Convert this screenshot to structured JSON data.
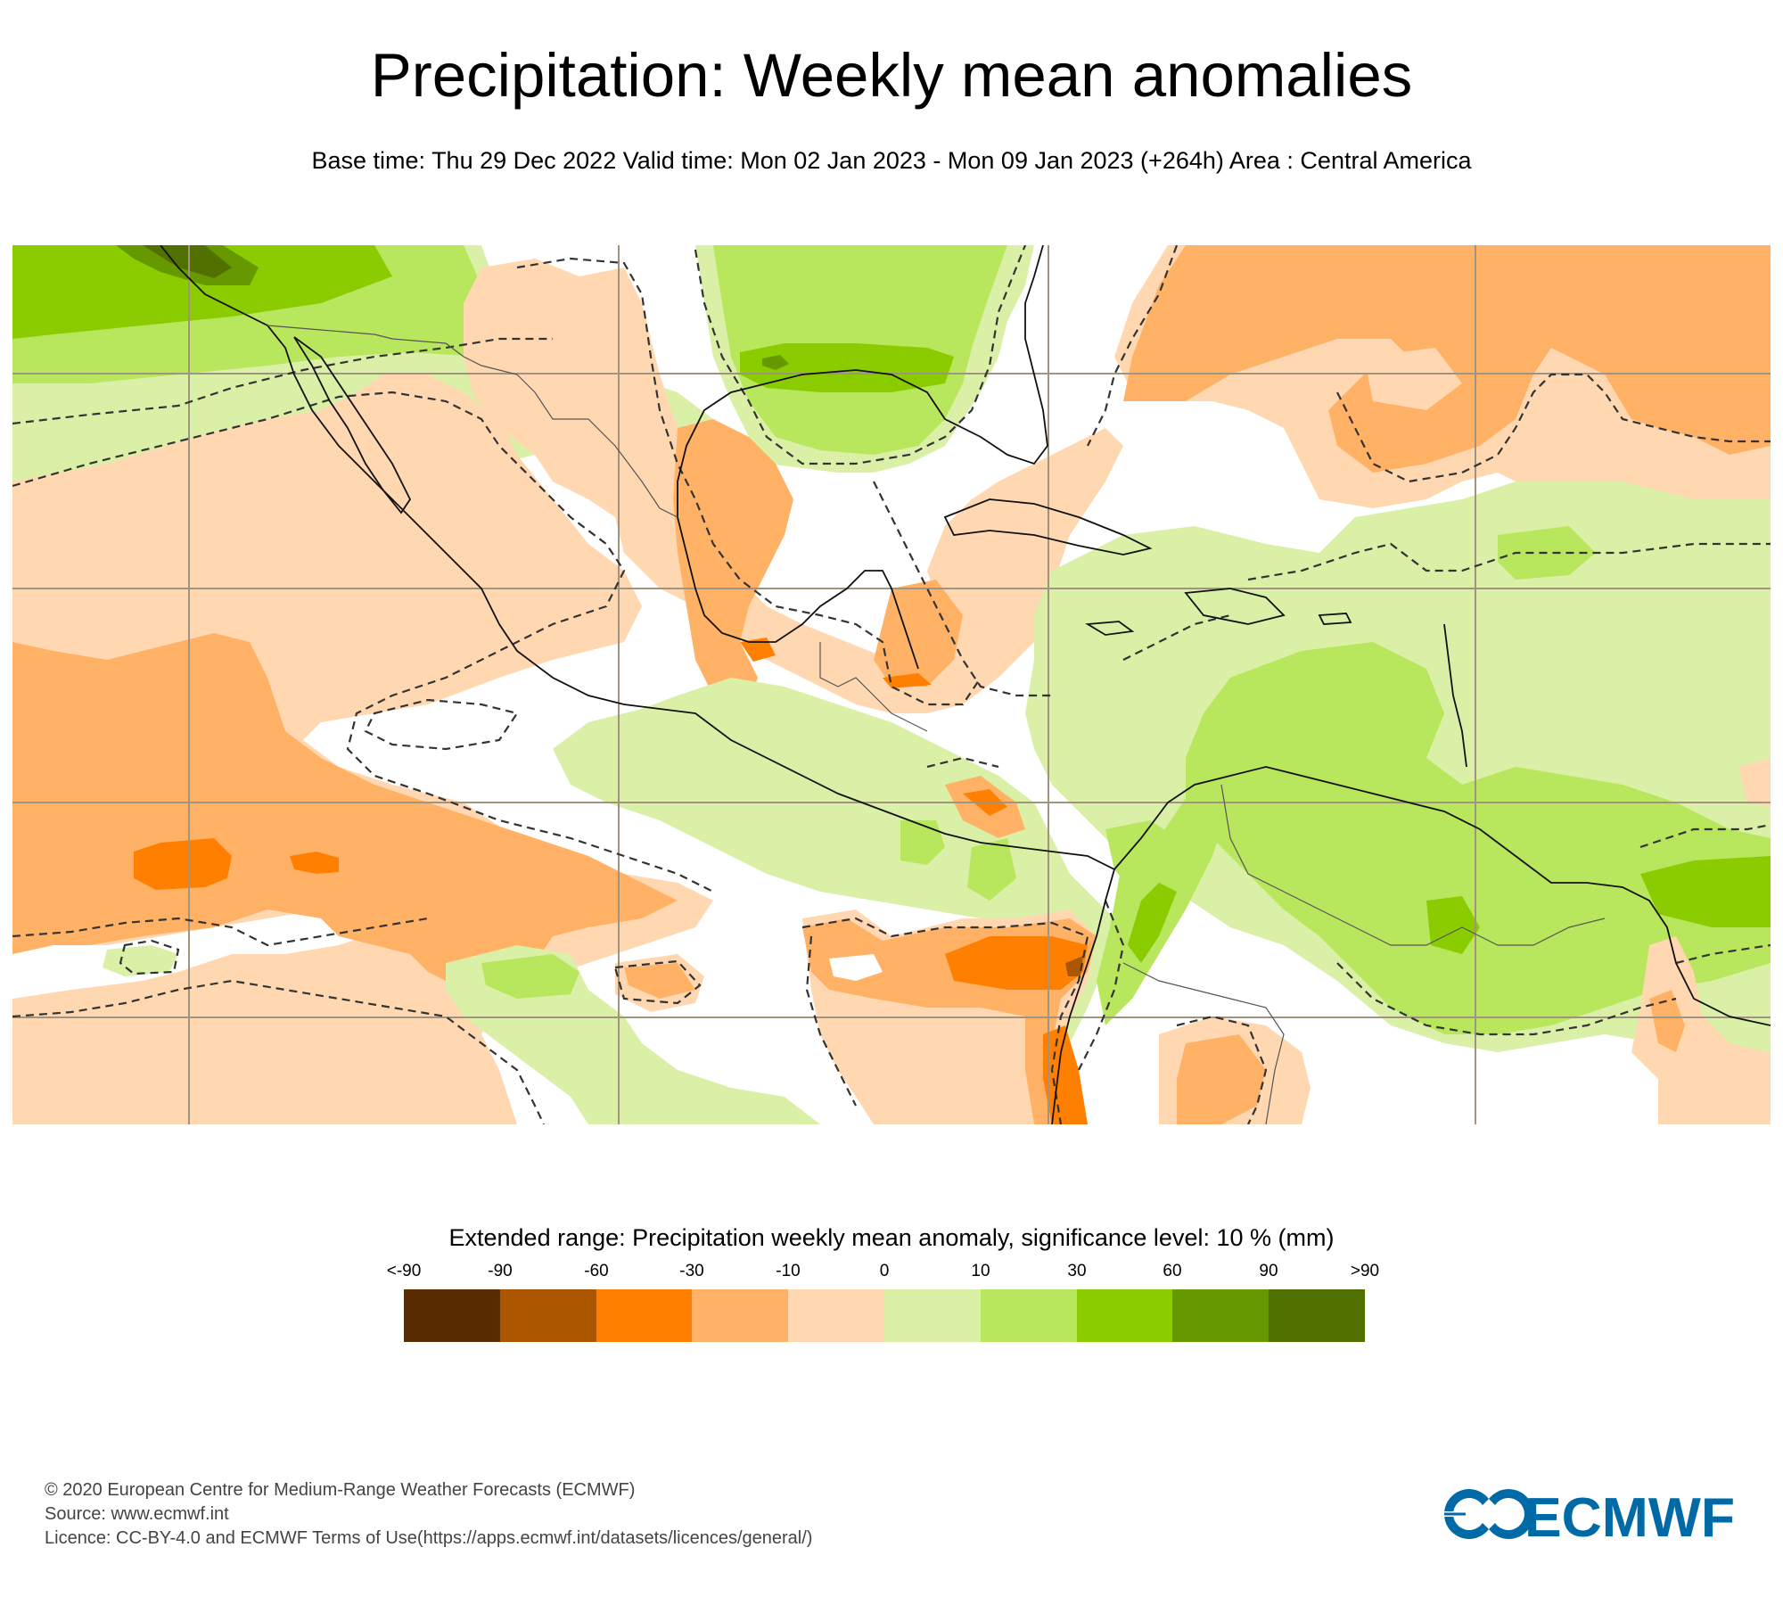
{
  "title": "Precipitation: Weekly mean anomalies",
  "subtitle": "Base time: Thu 29 Dec 2022 Valid time: Mon 02 Jan 2023 - Mon 09 Jan 2023 (+264h) Area : Central America",
  "map": {
    "area": "Central America",
    "significance_contour": "dashed",
    "palette": {
      "lt_m90": "#5a2d00",
      "m90_m60": "#ad5600",
      "m60_m30": "#ff8000",
      "m30_m10": "#ffb266",
      "m10_0": "#ffd8b2",
      "zero_10": "#d9f0a6",
      "p10_30": "#b8e65c",
      "p30_60": "#8acc00",
      "p60_90": "#669900",
      "gt_90": "#527000",
      "neutral": "#ffffff",
      "grid": "#a09480",
      "coast": "#000000"
    }
  },
  "legend": {
    "title": "Extended range: Precipitation weekly mean anomaly, significance level: 10 % (mm)",
    "labels": [
      "<-90",
      "-90",
      "-60",
      "-30",
      "-10",
      "0",
      "10",
      "30",
      "60",
      "90",
      ">90"
    ],
    "colors": [
      "#5a2d00",
      "#ad5600",
      "#ff8000",
      "#ffb266",
      "#ffd8b2",
      "#d9f0a6",
      "#b8e65c",
      "#8acc00",
      "#669900",
      "#527000"
    ]
  },
  "footer": {
    "copyright": "© 2020 European Centre for Medium-Range Weather Forecasts (ECMWF)",
    "source": "Source: www.ecmwf.int",
    "licence": "Licence: CC-BY-4.0 and ECMWF Terms of Use(https://apps.ecmwf.int/datasets/licences/general/)"
  },
  "logo": {
    "text": "ECMWF",
    "color": "#006aa7"
  }
}
